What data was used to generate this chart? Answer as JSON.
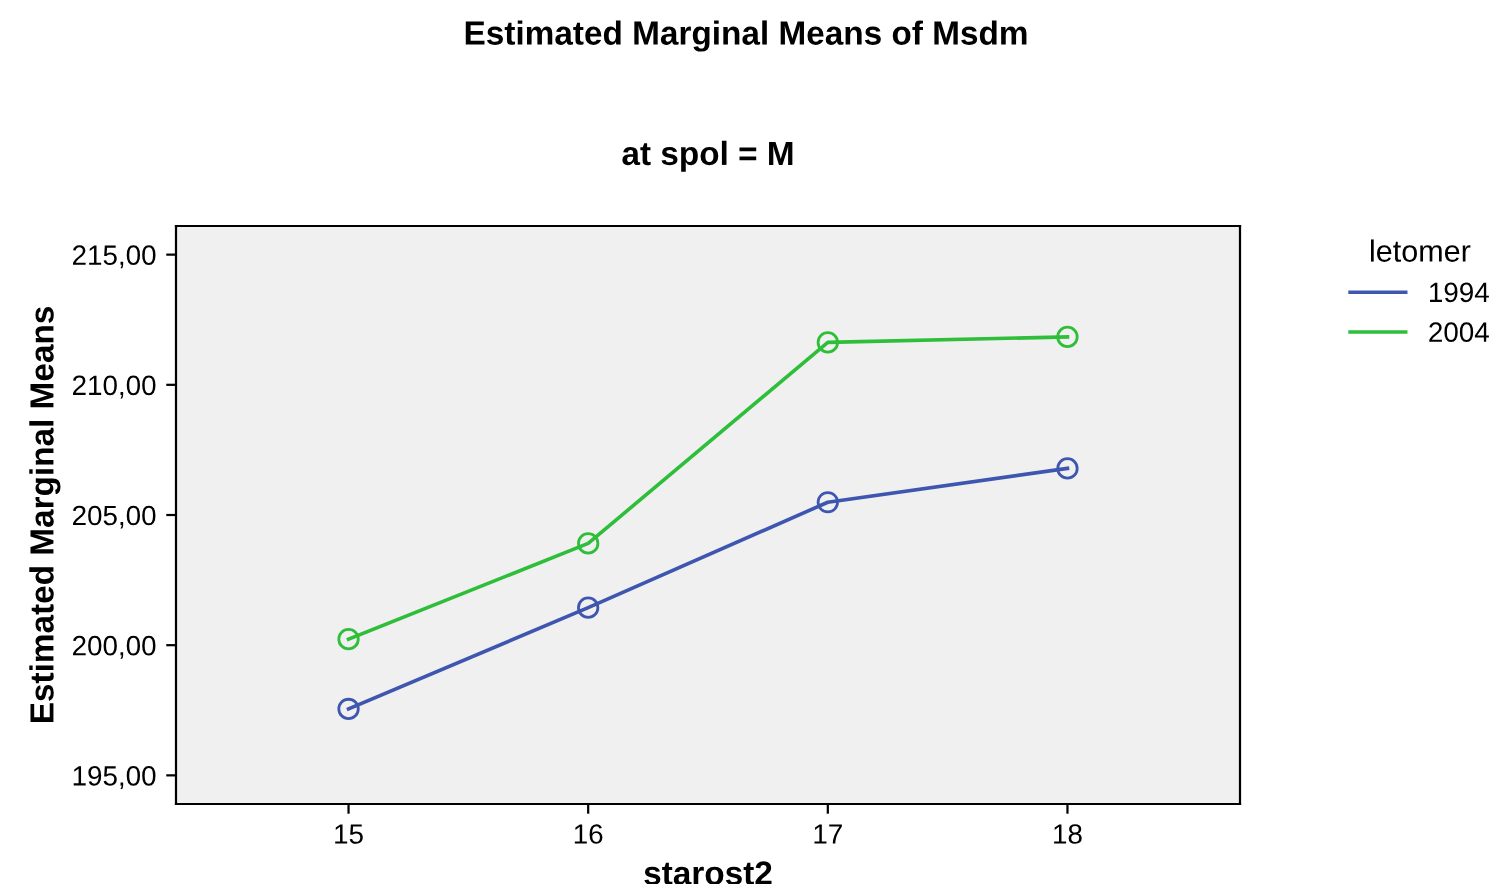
{
  "chart_data": {
    "type": "line",
    "title": "Estimated Marginal Means of Msdm",
    "subtitle": "at spol = M",
    "xlabel": "starost2",
    "ylabel": "Estimated Marginal Means",
    "legend_title": "letomer",
    "categories": [
      "15",
      "16",
      "17",
      "18"
    ],
    "series": [
      {
        "name": "1994",
        "color": "#3f56b0",
        "values": [
          197.55,
          201.44,
          205.49,
          206.79
        ]
      },
      {
        "name": "2004",
        "color": "#2fbe3a",
        "values": [
          200.23,
          203.91,
          211.63,
          211.84
        ]
      }
    ],
    "ylim": [
      193.9,
      216.1
    ],
    "yticks": [
      {
        "value": 195,
        "label": "195,00"
      },
      {
        "value": 200,
        "label": "200,00"
      },
      {
        "value": 205,
        "label": "205,00"
      },
      {
        "value": 210,
        "label": "210,00"
      },
      {
        "value": 215,
        "label": "215,00"
      }
    ],
    "marker": "circle",
    "line_style": "solid",
    "legend": "right",
    "grid": false
  }
}
